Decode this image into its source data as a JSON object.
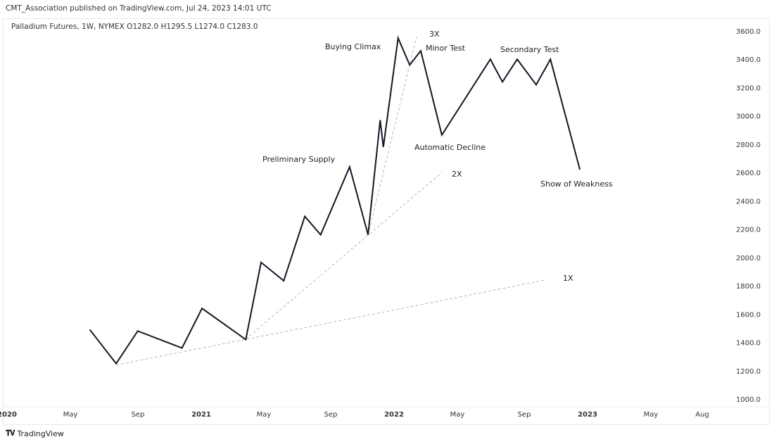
{
  "header": {
    "published": "CMT_Association published on TradingView.com, Jul 24, 2023 14:01 UTC",
    "legend": "Palladium Futures, 1W, NYMEX  O1282.0  H1295.5  L1274.0  C1283.0"
  },
  "footer": {
    "brand": "TradingView",
    "logo_icon": "tradingview-logo-icon"
  },
  "chart_data": {
    "type": "line",
    "title": "Palladium Futures, 1W, NYMEX",
    "ylim": [
      1000,
      3600
    ],
    "y_ticks": [
      "3600.0",
      "3400.0",
      "3200.0",
      "3000.0",
      "2800.0",
      "2600.0",
      "2400.0",
      "2200.0",
      "2000.0",
      "1800.0",
      "1600.0",
      "1400.0",
      "1200.0",
      "1000.0"
    ],
    "x_ticks": [
      "2020",
      "May",
      "Sep",
      "2021",
      "May",
      "Sep",
      "2022",
      "May",
      "Sep",
      "2023",
      "May",
      "Aug"
    ],
    "grid": false,
    "series": [
      {
        "color": "#131722",
        "points": [
          [
            "2020-06-06",
            1490
          ],
          [
            "2020-07-26",
            1250
          ],
          [
            "2020-09-05",
            1480
          ],
          [
            "2020-11-28",
            1360
          ],
          [
            "2021-01-05",
            1640
          ],
          [
            "2021-03-29",
            1420
          ],
          [
            "2021-04-27",
            1965
          ],
          [
            "2021-06-09",
            1835
          ],
          [
            "2021-07-19",
            2290
          ],
          [
            "2021-08-18",
            2160
          ],
          [
            "2021-10-12",
            2640
          ],
          [
            "2021-11-16",
            2160
          ],
          [
            "2021-12-09",
            2970
          ],
          [
            "2021-12-15",
            2780
          ],
          [
            "2022-01-12",
            3550
          ],
          [
            "2022-02-03",
            3360
          ],
          [
            "2022-02-24",
            3460
          ],
          [
            "2022-04-05",
            2865
          ],
          [
            "2022-07-06",
            3400
          ],
          [
            "2022-07-29",
            3240
          ],
          [
            "2022-08-26",
            3400
          ],
          [
            "2022-10-01",
            3220
          ],
          [
            "2022-10-28",
            3400
          ],
          [
            "2022-12-23",
            2620
          ]
        ]
      }
    ],
    "fan_lines": [
      {
        "label": "1X",
        "from": [
          "2020-07-26",
          1240
        ],
        "to": [
          "2022-10-18",
          1840
        ]
      },
      {
        "label": "2X",
        "from": [
          "2021-03-29",
          1423
        ],
        "to": [
          "2022-04-05",
          2600
        ]
      },
      {
        "label": "3X",
        "from": [
          "2021-11-16",
          2160
        ],
        "to": [
          "2022-02-16",
          3560
        ]
      }
    ],
    "annotations": [
      "Buying Climax",
      "Minor Test",
      "Secondary Test",
      "Preliminary Supply",
      "Automatic Decline",
      "Show of Weakness"
    ]
  }
}
